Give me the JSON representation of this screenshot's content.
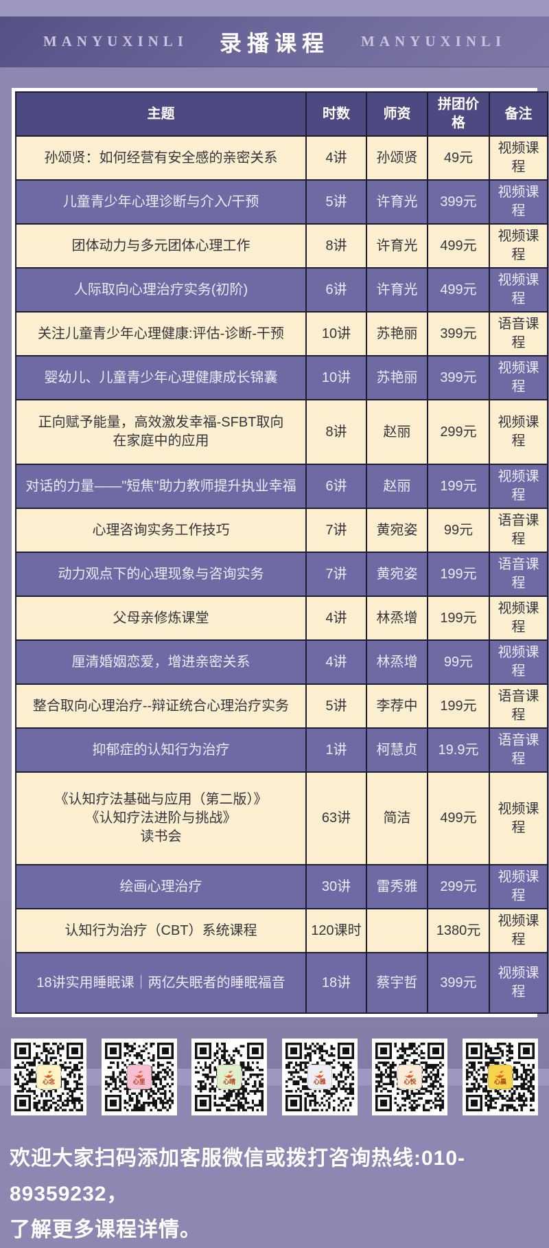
{
  "header": {
    "brand_left": "MANYUXINLI",
    "title": "录播课程",
    "brand_right": "MANYUXINLI"
  },
  "table": {
    "columns": [
      "主题",
      "时数",
      "师资",
      "拼团价格",
      "备注"
    ],
    "rows": [
      {
        "topic": "孙颂贤：如何经营有安全感的亲密关系",
        "hours": "4讲",
        "teacher": "孙颂贤",
        "price": "49元",
        "note": "视频课程"
      },
      {
        "topic": "儿童青少年心理诊断与介入/干预",
        "hours": "5讲",
        "teacher": "许育光",
        "price": "399元",
        "note": "视频课程"
      },
      {
        "topic": "团体动力与多元团体心理工作",
        "hours": "8讲",
        "teacher": "许育光",
        "price": "499元",
        "note": "视频课程"
      },
      {
        "topic": "人际取向心理治疗实务(初阶)",
        "hours": "6讲",
        "teacher": "许育光",
        "price": "499元",
        "note": "视频课程"
      },
      {
        "topic": "关注儿童青少年心理健康:评估-诊断-干预",
        "hours": "10讲",
        "teacher": "苏艳丽",
        "price": "399元",
        "note": "语音课程"
      },
      {
        "topic": "婴幼儿、儿童青少年心理健康成长锦囊",
        "hours": "10讲",
        "teacher": "苏艳丽",
        "price": "399元",
        "note": "视频课程"
      },
      {
        "topic": "正向赋予能量，高效激发幸福-SFBT取向\n在家庭中的应用",
        "hours": "8讲",
        "teacher": "赵丽",
        "price": "299元",
        "note": "视频课程"
      },
      {
        "topic": "对话的力量——\"短焦\"助力教师提升执业幸福",
        "hours": "6讲",
        "teacher": "赵丽",
        "price": "199元",
        "note": "视频课程"
      },
      {
        "topic": "心理咨询实务工作技巧",
        "hours": "7讲",
        "teacher": "黄宛姿",
        "price": "99元",
        "note": "语音课程"
      },
      {
        "topic": "动力观点下的心理现象与咨询实务",
        "hours": "7讲",
        "teacher": "黄宛姿",
        "price": "199元",
        "note": "语音课程"
      },
      {
        "topic": "父母亲修炼课堂",
        "hours": "4讲",
        "teacher": "林烝增",
        "price": "199元",
        "note": "视频课程"
      },
      {
        "topic": "厘清婚姻恋爱，增进亲密关系",
        "hours": "4讲",
        "teacher": "林烝增",
        "price": "99元",
        "note": "视频课程"
      },
      {
        "topic": "整合取向心理治疗--辩证统合心理治疗实务",
        "hours": "5讲",
        "teacher": "李荐中",
        "price": "199元",
        "note": "语音课程"
      },
      {
        "topic": "抑郁症的认知行为治疗",
        "hours": "1讲",
        "teacher": "柯慧贞",
        "price": "19.9元",
        "note": "语音课程"
      },
      {
        "topic": "《认知疗法基础与应用（第二版）》\n《认知疗法进阶与挑战》\n读书会",
        "hours": "63讲",
        "teacher": "简洁",
        "price": "499元",
        "note": "视频课程"
      },
      {
        "topic": "绘画心理治疗",
        "hours": "30讲",
        "teacher": "雷秀雅",
        "price": "299元",
        "note": "视频课程"
      },
      {
        "topic": "认知行为治疗（CBT）系统课程",
        "hours": "120课时",
        "teacher": "",
        "price": "1380元",
        "note": "视频课程"
      },
      {
        "topic": "18讲实用睡眠课｜两亿失眠者的睡眠福音",
        "hours": "18讲",
        "teacher": "蔡宇哲",
        "price": "399元",
        "note": "视频课程"
      }
    ]
  },
  "qr_section": {
    "codes": [
      {
        "label": "心念",
        "badge_color": "#fdf3c4"
      },
      {
        "label": "心里",
        "badge_color": "#f6bfd2"
      },
      {
        "label": "心晴",
        "badge_color": "#e0efcc"
      },
      {
        "label": "心雅",
        "badge_color": "#efedf6"
      },
      {
        "label": "心悦",
        "badge_color": "#fbecd9"
      },
      {
        "label": "心晨",
        "badge_color": "#f6d44d"
      }
    ]
  },
  "footer": {
    "line1": "欢迎大家扫码添加客服微信或拨打咨询热线:010-89359232，",
    "line2": "了解更多课程详情。"
  },
  "colors": {
    "page_background": "#8d88b1",
    "banner": "#6b6699",
    "table_header": "#4e4980",
    "row_cream": "#fcefd0",
    "row_purple": "#6f6aa3",
    "border": "#1d1d31",
    "logo_orange": "#e8571f"
  }
}
